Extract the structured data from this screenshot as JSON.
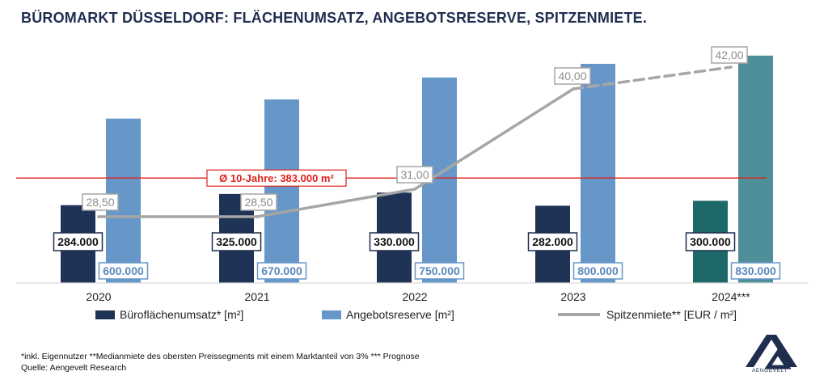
{
  "title": "BÜROMARKT DÜSSELDORF: FLÄCHENUMSATZ, ANGEBOTSRESERVE, SPITZENMIETE.",
  "chart_data": {
    "type": "bar",
    "categories": [
      "2020",
      "2021",
      "2022",
      "2023",
      "2024***"
    ],
    "series": [
      {
        "name": "Büroflächenumsatz* [m²]",
        "kind": "bar",
        "values": [
          284000,
          325000,
          330000,
          282000,
          300000
        ],
        "labels": [
          "284.000",
          "325.000",
          "330.000",
          "282.000",
          "300.000"
        ],
        "color": "#1f3356",
        "forecast_color": "#1d6868"
      },
      {
        "name": "Angebotsreserve [m²]",
        "kind": "bar",
        "values": [
          600000,
          670000,
          750000,
          800000,
          830000
        ],
        "labels": [
          "600.000",
          "670.000",
          "750.000",
          "800.000",
          "830.000"
        ],
        "color": "#6797c9",
        "forecast_color": "#4f8f99"
      },
      {
        "name": "Spitzenmiete** [EUR / m²]",
        "kind": "line",
        "values": [
          28.5,
          28.5,
          31.0,
          40.0,
          42.0
        ],
        "labels": [
          "28,50",
          "28,50",
          "31,00",
          "40,00",
          "42,00"
        ],
        "color": "#a6a6a6",
        "dashed_last_segment": true
      }
    ],
    "reference_line": {
      "value": 383000,
      "label": "Ø 10-Jahre: 383.000 m²",
      "color": "#e0201b"
    },
    "ylim_area": [
      0,
      850000
    ],
    "ylim_rent": [
      20,
      43
    ]
  },
  "footnote": {
    "line1": "*inkl. Eigennutzer **Medianmiete des obersten Preissegments mit einem Marktanteil von 3% *** Prognose",
    "line2": "Quelle: Aengevelt Research"
  },
  "logo": {
    "text": "AENGEVELT",
    "color": "#1f2d4f"
  }
}
